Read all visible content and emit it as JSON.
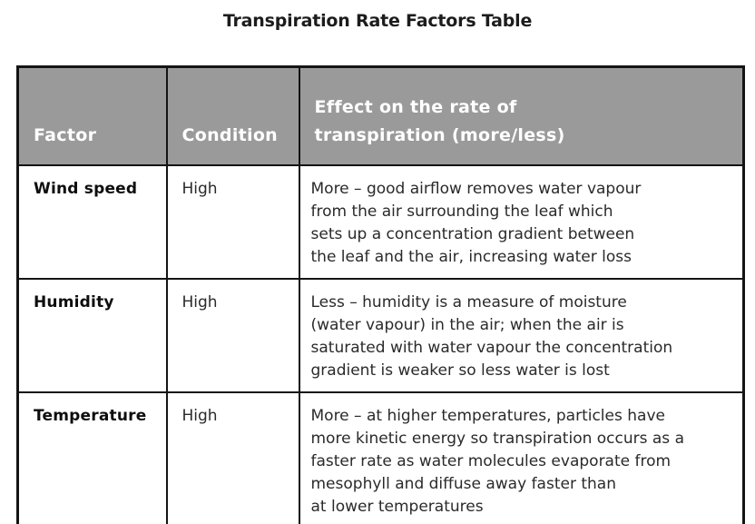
{
  "page": {
    "title": "Transpiration Rate Factors Table",
    "background_color": "#ffffff"
  },
  "table": {
    "style": {
      "header_background": "#9a9a9a",
      "header_text_color": "#ffffff",
      "border_color": "#141414",
      "body_text_color": "#262626"
    },
    "columns": [
      {
        "label": "Factor"
      },
      {
        "label": "Condition"
      },
      {
        "label": "Effect on the rate of\ntranspiration (more/less)"
      }
    ],
    "rows": [
      {
        "factor": "Wind speed",
        "condition": "High",
        "effect": "More – good airflow removes water vapour\nfrom the air surrounding the leaf which\nsets up a concentration gradient between\nthe leaf and the air, increasing water loss"
      },
      {
        "factor": "Humidity",
        "condition": "High",
        "effect": "Less – humidity is a measure of moisture\n(water vapour) in the air; when the air is\nsaturated with water vapour the concentration\ngradient is weaker so less water is lost"
      },
      {
        "factor": "Temperature",
        "condition": "High",
        "effect": "More – at higher temperatures, particles have\nmore kinetic energy so transpiration occurs as a\nfaster rate as water molecules evaporate from\nmesophyll and diffuse away faster than\nat lower temperatures"
      }
    ]
  }
}
